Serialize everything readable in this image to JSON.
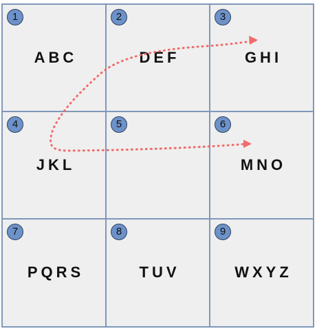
{
  "keys": [
    {
      "number": "1",
      "letters": "ABC"
    },
    {
      "number": "2",
      "letters": "DEF"
    },
    {
      "number": "3",
      "letters": "GHI"
    },
    {
      "number": "4",
      "letters": "JKL"
    },
    {
      "number": "5",
      "letters": ""
    },
    {
      "number": "6",
      "letters": "MNO"
    },
    {
      "number": "7",
      "letters": "PQRS"
    },
    {
      "number": "8",
      "letters": "TUV"
    },
    {
      "number": "9",
      "letters": "WXYZ"
    }
  ],
  "colors": {
    "key_background": "#efefef",
    "key_border": "#7f97bb",
    "badge_fill": "#6d92c9",
    "path": "#f06b6b"
  },
  "gesture_path": {
    "style": "dotted",
    "from_key": "6",
    "via_key": "4",
    "to_key": "3"
  }
}
